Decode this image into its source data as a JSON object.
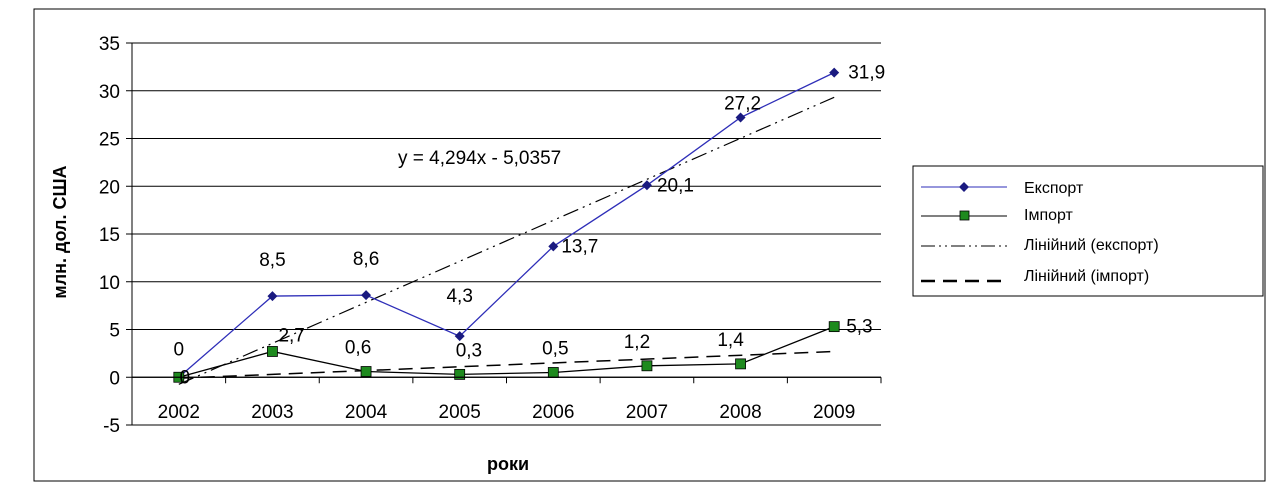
{
  "chart_data": {
    "type": "line",
    "title": "",
    "xlabel": "роки",
    "ylabel": "млн. дол. США",
    "categories": [
      "2002",
      "2003",
      "2004",
      "2005",
      "2006",
      "2007",
      "2008",
      "2009"
    ],
    "ylim": [
      -5,
      35
    ],
    "yticks": [
      "-5",
      "0",
      "5",
      "10",
      "15",
      "20",
      "25",
      "30",
      "35"
    ],
    "grid": true,
    "legend_position": "right",
    "series": [
      {
        "name": "Експорт",
        "values": [
          0,
          8.5,
          8.6,
          4.3,
          13.7,
          20.1,
          27.2,
          31.9
        ],
        "labels": [
          "0",
          "8,5",
          "8,6",
          "4,3",
          "13,7",
          "20,1",
          "27,2",
          "31,9"
        ],
        "color": "#2e2eb8",
        "marker": "diamond",
        "marker_color": "#1a1a80"
      },
      {
        "name": "Імпорт",
        "values": [
          0,
          2.7,
          0.6,
          0.3,
          0.5,
          1.2,
          1.4,
          5.3
        ],
        "labels": [
          "0",
          "2,7",
          "0,6",
          "0,3",
          "0,5",
          "1,2",
          "1,4",
          "5,3"
        ],
        "color": "#000000",
        "marker": "square",
        "marker_color": "#1e8a1e"
      }
    ],
    "trendlines": [
      {
        "name": "Лінійний (експорт)",
        "slope": 4.294,
        "intercept": -5.0357,
        "style": "dash-dot",
        "color": "#000000"
      },
      {
        "name": "Лінійний (імпорт)",
        "slope": 0.4,
        "intercept": -0.5,
        "style": "dashed",
        "color": "#000000"
      }
    ],
    "annotations": [
      {
        "text": "y = 4,294x - 5,0357"
      }
    ]
  }
}
